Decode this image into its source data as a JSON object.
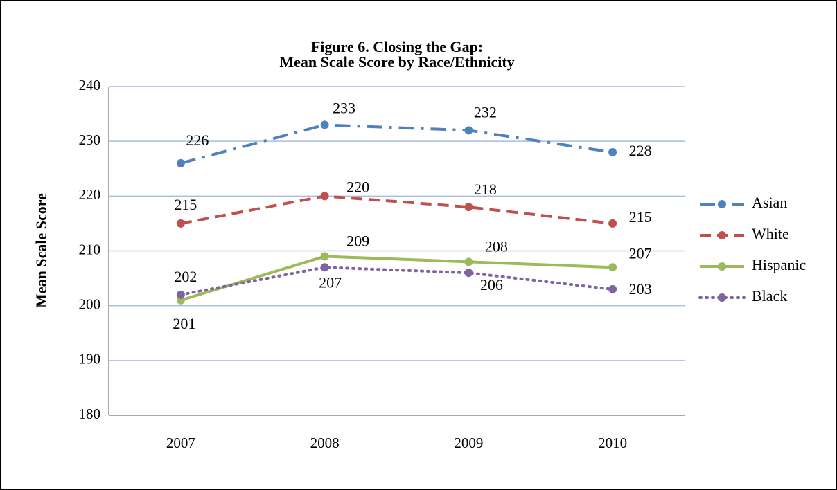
{
  "chart_data": {
    "type": "line",
    "title": [
      "Figure 6.  Closing the Gap:",
      "Mean Scale Score by Race/Ethnicity"
    ],
    "y_label": "Mean Scale Score",
    "categories": [
      "2007",
      "2008",
      "2009",
      "2010"
    ],
    "series": [
      {
        "name": "Asian",
        "color": "#4f81bd",
        "dash": "dashdot",
        "values": [
          226,
          233,
          232,
          228
        ]
      },
      {
        "name": "White",
        "color": "#c0504d",
        "dash": "dash",
        "values": [
          215,
          220,
          218,
          215
        ]
      },
      {
        "name": "Hispanic",
        "color": "#9bbb59",
        "dash": "solid",
        "values": [
          201,
          209,
          208,
          207
        ]
      },
      {
        "name": "Black",
        "color": "#8064a2",
        "dash": "dot",
        "values": [
          202,
          207,
          206,
          203
        ]
      }
    ],
    "ylim": [
      180,
      240
    ],
    "yticks": [
      180,
      190,
      200,
      210,
      220,
      230,
      240
    ],
    "grid": true,
    "legend": "right"
  }
}
